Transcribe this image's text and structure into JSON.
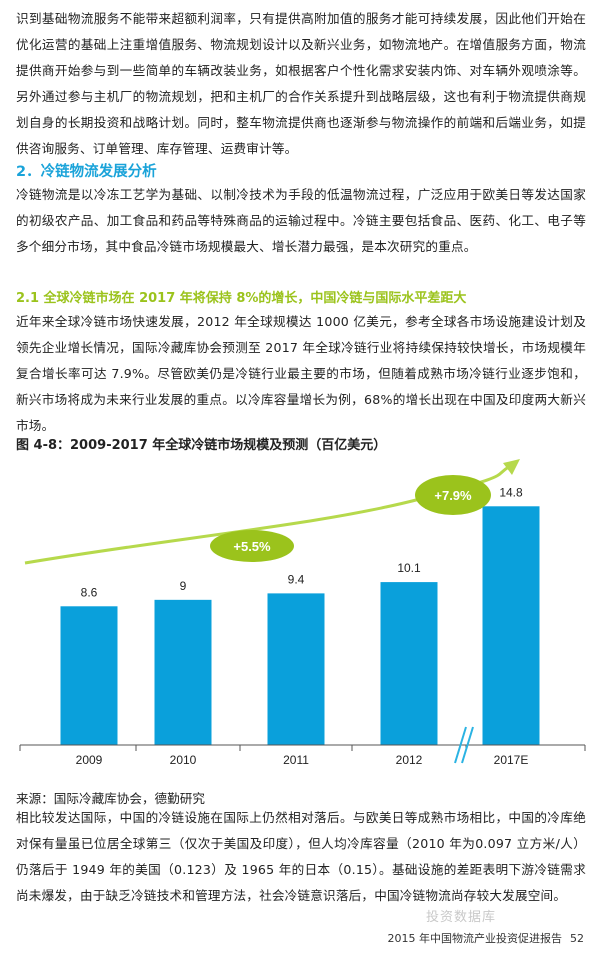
{
  "paragraphs": {
    "p1": "识到基础物流服务不能带来超额利润率，只有提供高附加值的服务才能可持续发展，因此他们开始在优化运营的基础上注重增值服务、物流规划设计以及新兴业务，如物流地产。在增值服务方面，物流提供商开始参与到一些简单的车辆改装业务，如根据客户个性化需求安装内饰、对车辆外观喷涂等。另外通过参与主机厂的物流规划，把和主机厂的合作关系提升到战略层级，这也有利于物流提供商规划自身的长期投资和战略计划。同时，整车物流提供商也逐渐参与物流操作的前端和后端业务，如提供咨询服务、订单管理、库存管理、运费审计等。",
    "p2": "冷链物流是以冷冻工艺学为基础、以制冷技术为手段的低温物流过程，广泛应用于欧美日等发达国家的初级农产品、加工食品和药品等特殊商品的运输过程中。冷链主要包括食品、医药、化工、电子等多个细分市场，其中食品冷链市场规模最大、增长潜力最强，是本次研究的重点。",
    "p3": "近年来全球冷链市场快速发展，2012 年全球规模达 1000 亿美元，参考全球各市场设施建设计划及领先企业增长情况，国际冷藏库协会预测至 2017 年全球冷链行业将持续保持较快增长，市场规模年复合增长率可达 7.9%。尽管欧美仍是冷链行业最主要的市场，但随着成熟市场冷链行业逐步饱和，新兴市场将成为未来行业发展的重点。以冷库容量增长为例，68%的增长出现在中国及印度两大新兴市场。",
    "p4": "相比较发达国际，中国的冷链设施在国际上仍然相对落后。与欧美日等成熟市场相比，中国的冷库绝对保有量虽已位居全球第三（仅次于美国及印度），但人均冷库容量（2010 年为0.097 立方米/人）仍落后于 1949 年的美国（0.123）及 1965 年的日本（0.15）。基础设施的差距表明下游冷链需求尚未爆发，由于缺乏冷链技术和管理方法，社会冷链意识落后，中国冷链物流尚存较大发展空间。"
  },
  "headings": {
    "section": "2．冷链物流发展分析",
    "subsection": "2.1 全球冷链市场在 2017 年将保持 8%的增长，中国冷链与国际水平差距大"
  },
  "figure": {
    "caption": "图 4-8：2009-2017 年全球冷链市场规模及预测（百亿美元）",
    "source": "来源：国际冷藏库协会，德勤研究"
  },
  "chart_data": {
    "type": "bar",
    "categories": [
      "2009",
      "2010",
      "2011",
      "2012",
      "2017E"
    ],
    "values": [
      8.6,
      9,
      9.4,
      10.1,
      14.8
    ],
    "value_labels": [
      "8.6",
      "9",
      "9.4",
      "10.1",
      "14.8"
    ],
    "ylim": [
      0,
      15.5
    ],
    "axis_break_between": [
      "2012",
      "2017E"
    ],
    "annotations": [
      "+5.5%",
      "+7.9%"
    ],
    "colors": {
      "bar": "#0aa0db",
      "growth_bubble": "#9bc31c",
      "trend_arrow": "#b6d94c",
      "axis": "#555555",
      "break_mark": "#2ab3e3"
    },
    "grid": false,
    "legend": "none"
  },
  "footer": {
    "text": "2015 年中国物流产业投资促进报告",
    "page": "52"
  },
  "watermark": "投资数据库",
  "colors": {
    "heading_blue": "#1aa3d9",
    "heading_green": "#9bc31c"
  }
}
